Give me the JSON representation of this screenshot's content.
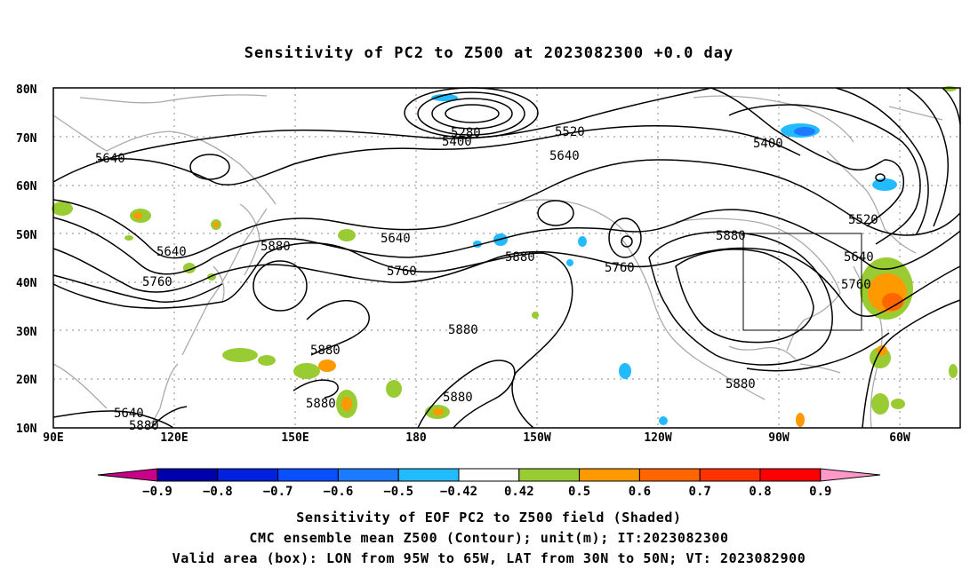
{
  "title": "Sensitivity of PC2 to Z500 at 2023082300 +0.0 day",
  "lat_labels": [
    "80N",
    "70N",
    "60N",
    "50N",
    "40N",
    "30N",
    "20N",
    "10N"
  ],
  "lon_labels": [
    "90E",
    "120E",
    "150E",
    "180",
    "150W",
    "120W",
    "90W",
    "60W"
  ],
  "contour_labels": [
    "5280",
    "5400",
    "5520",
    "5640",
    "5640",
    "5400",
    "5520",
    "5640",
    "5640",
    "5880",
    "5640",
    "5880",
    "5760",
    "5760",
    "5880",
    "5760",
    "5880",
    "5640",
    "5760",
    "5880",
    "5880",
    "5880",
    "5880",
    "5880",
    "5880"
  ],
  "colorbar": {
    "labels": [
      "-0.9",
      "-0.8",
      "-0.7",
      "-0.6",
      "-0.5",
      "-0.42",
      "0.42",
      "0.5",
      "0.6",
      "0.7",
      "0.8",
      "0.9"
    ],
    "colors": [
      "#c8008a",
      "#0000aa",
      "#0022dd",
      "#0a4fff",
      "#1c7bff",
      "#22bbff",
      "#ffffff",
      "#99cc33",
      "#ff9900",
      "#ff6600",
      "#ff3300",
      "#ff0000",
      "#ff99c8"
    ]
  },
  "footer": {
    "line1": "Sensitivity of EOF PC2 to Z500 field (Shaded)",
    "line2": "CMC ensemble mean Z500 (Contour); unit(m); IT:2023082300",
    "line3": "Valid area (box): LON from 95W to 65W, LAT from 30N to 50N; VT: 2023082900"
  }
}
